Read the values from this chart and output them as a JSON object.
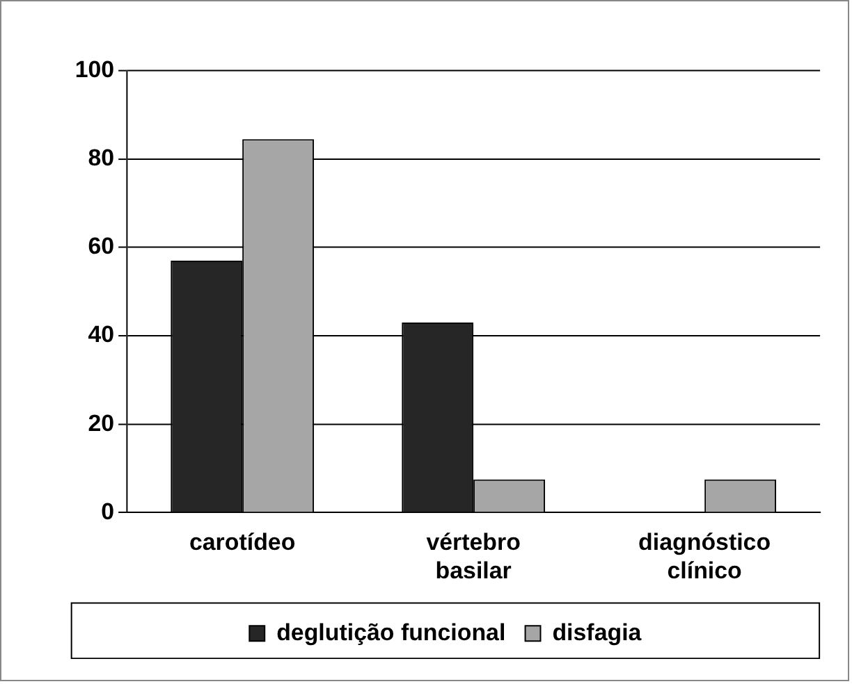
{
  "chart_data": {
    "type": "bar",
    "categories": [
      "carotídeo",
      "vértebro basilar",
      "diagnóstico clínico"
    ],
    "series": [
      {
        "name": "deglutição funcional",
        "color": "#262626",
        "values": [
          57,
          43,
          0
        ]
      },
      {
        "name": "disfagia",
        "color": "#a6a6a6",
        "values": [
          84.5,
          7.5,
          7.5
        ]
      }
    ],
    "ylim": [
      0,
      100
    ],
    "yticks": [
      0,
      20,
      40,
      60,
      80,
      100
    ],
    "grid": "y",
    "legend": "bottom"
  }
}
